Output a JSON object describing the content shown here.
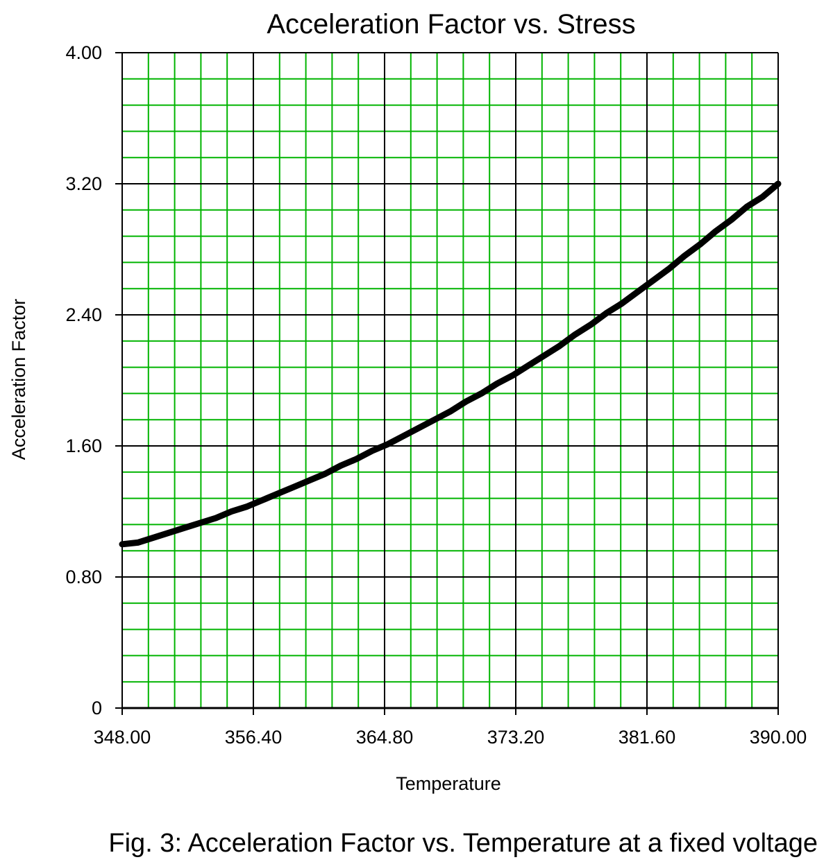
{
  "chart_data": {
    "type": "line",
    "title": "Acceleration Factor vs. Stress",
    "xlabel": "Temperature",
    "ylabel": "Acceleration Factor",
    "xlim": [
      348.0,
      390.0
    ],
    "ylim": [
      0,
      4.0
    ],
    "x_ticks": [
      "348.00",
      "356.40",
      "364.80",
      "373.20",
      "381.60",
      "390.00"
    ],
    "y_ticks": [
      "0",
      "0.80",
      "1.60",
      "2.40",
      "3.20",
      "4.00"
    ],
    "grid": true,
    "colors": {
      "minor_grid": "#00b400",
      "major_grid": "#000000",
      "line": "#000000"
    },
    "series": [
      {
        "x": [
          348.0,
          349.0,
          350.0,
          351.0,
          352.0,
          353.0,
          354.0,
          355.0,
          356.0,
          357.0,
          358.0,
          359.0,
          360.0,
          361.0,
          362.0,
          363.0,
          364.0,
          365.0,
          366.0,
          367.0,
          368.0,
          369.0,
          370.0,
          371.0,
          372.0,
          373.0,
          374.0,
          375.0,
          376.0,
          377.0,
          378.0,
          379.0,
          380.0,
          381.0,
          382.0,
          383.0,
          384.0,
          385.0,
          386.0,
          387.0,
          388.0,
          389.0,
          390.0
        ],
        "y": [
          1.0,
          1.01,
          1.04,
          1.07,
          1.1,
          1.13,
          1.16,
          1.2,
          1.23,
          1.27,
          1.31,
          1.35,
          1.39,
          1.43,
          1.48,
          1.52,
          1.57,
          1.61,
          1.66,
          1.71,
          1.76,
          1.81,
          1.87,
          1.92,
          1.98,
          2.03,
          2.09,
          2.15,
          2.21,
          2.28,
          2.34,
          2.41,
          2.47,
          2.54,
          2.61,
          2.68,
          2.76,
          2.83,
          2.91,
          2.98,
          3.06,
          3.12,
          3.2
        ]
      }
    ]
  },
  "caption": "Fig. 3:  Acceleration Factor vs. Temperature at a fixed voltage"
}
